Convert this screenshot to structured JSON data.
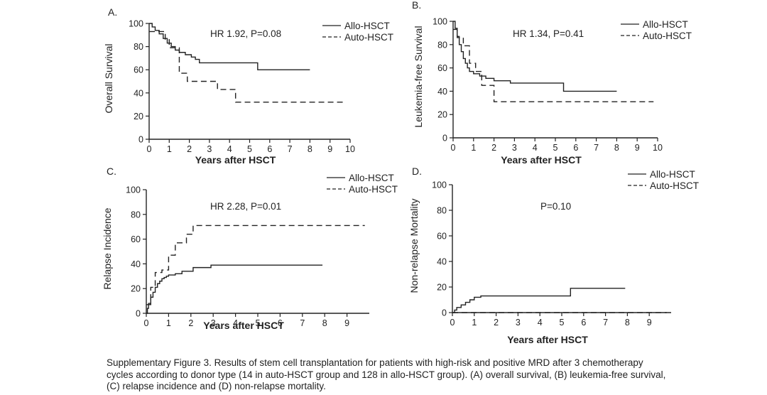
{
  "caption": {
    "lines": [
      "Supplementary Figure 3. Results of stem cell transplantation for patients with high-risk and positive MRD after 3 chemotherapy",
      "cycles according to donor type (14 in auto-HSCT group and 128 in allo-HSCT group). (A) overall survival, (B) leukemia-free survival,",
      "(C) relapse incidence and (D) non-relapse mortality."
    ]
  },
  "colors": {
    "line": "#222222",
    "axis": "#222222",
    "background": "#ffffff"
  },
  "chart_data": [
    {
      "panel": "A.",
      "type": "line",
      "step": true,
      "xlabel": "Years after HSCT",
      "ylabel": "Overall Survival",
      "annotation": "HR 1.92, P=0.08",
      "xlim": [
        0,
        10
      ],
      "ylim": [
        0,
        100
      ],
      "xticks": [
        0,
        1,
        2,
        3,
        4,
        5,
        6,
        7,
        8,
        9,
        10
      ],
      "yticks": [
        0,
        20,
        40,
        60,
        80,
        100
      ],
      "legend_position": "top-right",
      "series": [
        {
          "name": "Allo-HSCT",
          "style": "solid",
          "x": [
            0,
            0.15,
            0.3,
            0.5,
            0.7,
            0.9,
            1.1,
            1.3,
            1.5,
            1.8,
            2.1,
            2.3,
            2.5,
            5.4,
            8.0
          ],
          "y": [
            100,
            97,
            94,
            91,
            87,
            83,
            80,
            77,
            75,
            73,
            71,
            69,
            66,
            60,
            60
          ]
        },
        {
          "name": "Auto-HSCT",
          "style": "dashed",
          "x": [
            0,
            0.2,
            0.5,
            0.8,
            1.0,
            1.5,
            1.9,
            3.4,
            4.3,
            9.8
          ],
          "y": [
            93,
            93,
            93,
            86,
            79,
            57,
            50,
            43,
            32,
            32
          ]
        }
      ]
    },
    {
      "panel": "B.",
      "type": "line",
      "step": true,
      "xlabel": "Years after HSCT",
      "ylabel": "Leukemia-free Survival",
      "annotation": "HR 1.34, P=0.41",
      "xlim": [
        0,
        10
      ],
      "ylim": [
        0,
        100
      ],
      "xticks": [
        0,
        1,
        2,
        3,
        4,
        5,
        6,
        7,
        8,
        9,
        10
      ],
      "yticks": [
        0,
        20,
        40,
        60,
        80,
        100
      ],
      "legend_position": "top-right",
      "series": [
        {
          "name": "Allo-HSCT",
          "style": "solid",
          "x": [
            0,
            0.1,
            0.2,
            0.3,
            0.4,
            0.5,
            0.6,
            0.7,
            0.8,
            1.0,
            1.3,
            1.6,
            2.0,
            2.8,
            5.4,
            8.0
          ],
          "y": [
            100,
            94,
            87,
            80,
            74,
            68,
            64,
            60,
            57,
            55,
            53,
            51,
            49,
            47,
            40,
            40
          ]
        },
        {
          "name": "Auto-HSCT",
          "style": "dashed",
          "x": [
            0,
            0.2,
            0.5,
            0.8,
            1.1,
            1.4,
            2.0,
            9.8
          ],
          "y": [
            93,
            86,
            79,
            64,
            57,
            45,
            31,
            31
          ]
        }
      ]
    },
    {
      "panel": "C.",
      "type": "line",
      "step": true,
      "xlabel": "Years after HSCT",
      "ylabel": "Relapse Incidence",
      "annotation": "HR 2.28, P=0.01",
      "xlim": [
        0,
        10
      ],
      "ylim": [
        0,
        100
      ],
      "xticks": [
        0,
        1,
        2,
        3,
        4,
        5,
        6,
        7,
        8,
        9
      ],
      "yticks": [
        0,
        20,
        40,
        60,
        80,
        100
      ],
      "legend_position": "top-right",
      "series": [
        {
          "name": "Allo-HSCT",
          "style": "solid",
          "x": [
            0,
            0.05,
            0.1,
            0.2,
            0.3,
            0.4,
            0.5,
            0.6,
            0.7,
            0.8,
            0.9,
            1.0,
            1.3,
            1.6,
            2.1,
            2.9,
            7.9
          ],
          "y": [
            0,
            4,
            8,
            13,
            17,
            21,
            24,
            26,
            28,
            29,
            30,
            31,
            32,
            34,
            37,
            39,
            39
          ]
        },
        {
          "name": "Auto-HSCT",
          "style": "dashed",
          "x": [
            0,
            0.2,
            0.4,
            0.7,
            1.0,
            1.3,
            1.8,
            2.1,
            9.8
          ],
          "y": [
            7,
            21,
            33,
            35,
            47,
            57,
            64,
            71,
            71
          ]
        }
      ]
    },
    {
      "panel": "D.",
      "type": "line",
      "step": true,
      "xlabel": "Years after HSCT",
      "ylabel": "Non-relapse Mortality",
      "annotation": "P=0.10",
      "xlim": [
        0,
        10
      ],
      "ylim": [
        0,
        100
      ],
      "xticks": [
        0,
        1,
        2,
        3,
        4,
        5,
        6,
        7,
        8,
        9
      ],
      "yticks": [
        0,
        20,
        40,
        60,
        80,
        100
      ],
      "legend_position": "top-right",
      "series": [
        {
          "name": "Allo-HSCT",
          "style": "solid",
          "x": [
            0,
            0.1,
            0.2,
            0.4,
            0.6,
            0.8,
            1.0,
            1.3,
            5.4,
            7.9
          ],
          "y": [
            0,
            2,
            4,
            6,
            8,
            10,
            12,
            13,
            19,
            19
          ]
        },
        {
          "name": "Auto-HSCT",
          "style": "dashed",
          "x": [
            0,
            9.8
          ],
          "y": [
            0,
            0
          ]
        }
      ]
    }
  ]
}
